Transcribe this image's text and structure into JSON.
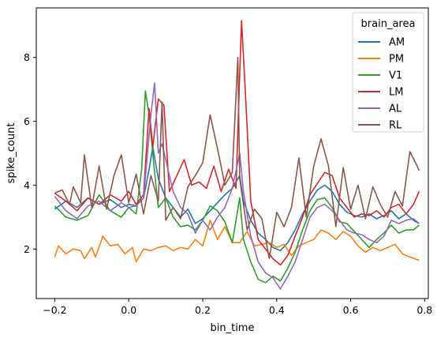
{
  "chart_data": {
    "type": "line",
    "title": "",
    "xlabel": "bin_time",
    "ylabel": "spike_count",
    "xlim": [
      -0.25,
      0.81
    ],
    "ylim": [
      0.45,
      9.55
    ],
    "xticks": [
      -0.2,
      0.0,
      0.2,
      0.4,
      0.6,
      0.8
    ],
    "xtick_labels": [
      "−0.2",
      "0.0",
      "0.2",
      "0.4",
      "0.6",
      "0.8"
    ],
    "yticks": [
      2,
      4,
      6,
      8
    ],
    "ytick_labels": [
      "2",
      "4",
      "6",
      "8"
    ],
    "grid": false,
    "legend": {
      "title": "brain_area",
      "placement": "top-right"
    },
    "series": [
      {
        "name": "AM",
        "color": "#1f77b4",
        "points": [
          [
            -0.2,
            3.25
          ],
          [
            -0.17,
            3.5
          ],
          [
            -0.14,
            3.3
          ],
          [
            -0.11,
            3.6
          ],
          [
            -0.08,
            3.4
          ],
          [
            -0.05,
            3.55
          ],
          [
            -0.02,
            3.3
          ],
          [
            0.0,
            3.4
          ],
          [
            0.02,
            3.35
          ],
          [
            0.04,
            3.6
          ],
          [
            0.055,
            4.5
          ],
          [
            0.065,
            5.2
          ],
          [
            0.08,
            4.2
          ],
          [
            0.1,
            3.6
          ],
          [
            0.12,
            3.3
          ],
          [
            0.14,
            3.0
          ],
          [
            0.16,
            3.25
          ],
          [
            0.18,
            2.8
          ],
          [
            0.2,
            2.95
          ],
          [
            0.22,
            3.2
          ],
          [
            0.24,
            3.45
          ],
          [
            0.26,
            3.7
          ],
          [
            0.28,
            3.9
          ],
          [
            0.3,
            4.3
          ],
          [
            0.31,
            3.5
          ],
          [
            0.33,
            2.9
          ],
          [
            0.35,
            2.5
          ],
          [
            0.37,
            2.3
          ],
          [
            0.39,
            2.05
          ],
          [
            0.41,
            1.95
          ],
          [
            0.43,
            2.2
          ],
          [
            0.45,
            2.6
          ],
          [
            0.47,
            3.1
          ],
          [
            0.49,
            3.5
          ],
          [
            0.51,
            3.85
          ],
          [
            0.53,
            4.0
          ],
          [
            0.55,
            3.8
          ],
          [
            0.57,
            3.4
          ],
          [
            0.59,
            3.15
          ],
          [
            0.61,
            3.05
          ],
          [
            0.63,
            3.0
          ],
          [
            0.65,
            3.1
          ],
          [
            0.67,
            2.95
          ],
          [
            0.69,
            3.05
          ],
          [
            0.71,
            3.2
          ],
          [
            0.73,
            2.95
          ],
          [
            0.75,
            3.1
          ],
          [
            0.77,
            2.9
          ],
          [
            0.785,
            2.8
          ]
        ]
      },
      {
        "name": "PM",
        "color": "#ff7f0e",
        "points": [
          [
            -0.2,
            1.75
          ],
          [
            -0.19,
            2.1
          ],
          [
            -0.17,
            1.85
          ],
          [
            -0.15,
            2.0
          ],
          [
            -0.13,
            1.95
          ],
          [
            -0.12,
            1.7
          ],
          [
            -0.1,
            2.05
          ],
          [
            -0.09,
            1.75
          ],
          [
            -0.07,
            2.4
          ],
          [
            -0.05,
            2.1
          ],
          [
            -0.03,
            2.15
          ],
          [
            -0.01,
            1.85
          ],
          [
            0.01,
            2.05
          ],
          [
            0.02,
            1.6
          ],
          [
            0.04,
            2.0
          ],
          [
            0.06,
            1.95
          ],
          [
            0.08,
            2.05
          ],
          [
            0.1,
            2.1
          ],
          [
            0.12,
            1.95
          ],
          [
            0.14,
            2.05
          ],
          [
            0.16,
            2.0
          ],
          [
            0.18,
            2.3
          ],
          [
            0.2,
            2.1
          ],
          [
            0.22,
            2.9
          ],
          [
            0.24,
            2.3
          ],
          [
            0.26,
            2.7
          ],
          [
            0.28,
            2.2
          ],
          [
            0.3,
            2.2
          ],
          [
            0.32,
            2.55
          ],
          [
            0.34,
            2.1
          ],
          [
            0.36,
            2.15
          ],
          [
            0.38,
            2.2
          ],
          [
            0.4,
            2.05
          ],
          [
            0.42,
            2.15
          ],
          [
            0.44,
            1.8
          ],
          [
            0.46,
            2.1
          ],
          [
            0.48,
            2.2
          ],
          [
            0.5,
            2.3
          ],
          [
            0.52,
            2.6
          ],
          [
            0.54,
            2.5
          ],
          [
            0.56,
            2.3
          ],
          [
            0.58,
            2.55
          ],
          [
            0.6,
            2.4
          ],
          [
            0.62,
            2.1
          ],
          [
            0.64,
            1.9
          ],
          [
            0.66,
            2.05
          ],
          [
            0.68,
            1.95
          ],
          [
            0.7,
            2.05
          ],
          [
            0.72,
            2.15
          ],
          [
            0.74,
            1.85
          ],
          [
            0.76,
            1.75
          ],
          [
            0.785,
            1.65
          ]
        ]
      },
      {
        "name": "V1",
        "color": "#2ca02c",
        "points": [
          [
            -0.2,
            3.35
          ],
          [
            -0.17,
            3.0
          ],
          [
            -0.14,
            2.9
          ],
          [
            -0.11,
            3.05
          ],
          [
            -0.08,
            3.7
          ],
          [
            -0.05,
            3.2
          ],
          [
            -0.02,
            3.0
          ],
          [
            0.0,
            3.3
          ],
          [
            0.02,
            3.1
          ],
          [
            0.035,
            4.5
          ],
          [
            0.045,
            6.95
          ],
          [
            0.055,
            6.2
          ],
          [
            0.07,
            4.4
          ],
          [
            0.08,
            3.3
          ],
          [
            0.1,
            3.6
          ],
          [
            0.12,
            3.0
          ],
          [
            0.14,
            2.7
          ],
          [
            0.16,
            2.75
          ],
          [
            0.18,
            2.6
          ],
          [
            0.2,
            2.9
          ],
          [
            0.22,
            3.35
          ],
          [
            0.24,
            3.2
          ],
          [
            0.26,
            2.85
          ],
          [
            0.28,
            2.2
          ],
          [
            0.3,
            3.6
          ],
          [
            0.31,
            2.3
          ],
          [
            0.33,
            1.6
          ],
          [
            0.35,
            1.05
          ],
          [
            0.37,
            0.95
          ],
          [
            0.39,
            1.15
          ],
          [
            0.41,
            1.0
          ],
          [
            0.43,
            1.4
          ],
          [
            0.45,
            1.9
          ],
          [
            0.47,
            2.6
          ],
          [
            0.49,
            3.2
          ],
          [
            0.51,
            3.55
          ],
          [
            0.53,
            3.6
          ],
          [
            0.55,
            3.3
          ],
          [
            0.57,
            2.85
          ],
          [
            0.59,
            2.8
          ],
          [
            0.61,
            2.55
          ],
          [
            0.63,
            2.3
          ],
          [
            0.65,
            2.05
          ],
          [
            0.67,
            2.3
          ],
          [
            0.69,
            2.5
          ],
          [
            0.71,
            2.75
          ],
          [
            0.73,
            2.5
          ],
          [
            0.75,
            2.6
          ],
          [
            0.77,
            2.6
          ],
          [
            0.785,
            2.75
          ]
        ]
      },
      {
        "name": "LM",
        "color": "#d62728",
        "points": [
          [
            -0.2,
            3.75
          ],
          [
            -0.17,
            3.5
          ],
          [
            -0.14,
            3.2
          ],
          [
            -0.11,
            3.6
          ],
          [
            -0.08,
            3.4
          ],
          [
            -0.05,
            3.7
          ],
          [
            -0.02,
            3.5
          ],
          [
            0.0,
            3.8
          ],
          [
            0.02,
            3.4
          ],
          [
            0.04,
            3.7
          ],
          [
            0.055,
            6.4
          ],
          [
            0.065,
            5.2
          ],
          [
            0.08,
            6.7
          ],
          [
            0.095,
            6.5
          ],
          [
            0.11,
            3.8
          ],
          [
            0.13,
            4.3
          ],
          [
            0.15,
            4.8
          ],
          [
            0.17,
            4.0
          ],
          [
            0.19,
            4.1
          ],
          [
            0.21,
            3.9
          ],
          [
            0.23,
            4.6
          ],
          [
            0.25,
            3.8
          ],
          [
            0.27,
            4.5
          ],
          [
            0.29,
            3.9
          ],
          [
            0.3,
            7.5
          ],
          [
            0.305,
            9.15
          ],
          [
            0.315,
            7.0
          ],
          [
            0.33,
            3.5
          ],
          [
            0.35,
            2.3
          ],
          [
            0.37,
            2.0
          ],
          [
            0.39,
            1.7
          ],
          [
            0.41,
            1.5
          ],
          [
            0.43,
            1.8
          ],
          [
            0.45,
            2.4
          ],
          [
            0.47,
            3.0
          ],
          [
            0.49,
            3.7
          ],
          [
            0.51,
            4.05
          ],
          [
            0.53,
            4.4
          ],
          [
            0.55,
            4.3
          ],
          [
            0.57,
            3.6
          ],
          [
            0.59,
            3.3
          ],
          [
            0.61,
            3.0
          ],
          [
            0.63,
            3.1
          ],
          [
            0.65,
            3.05
          ],
          [
            0.67,
            3.2
          ],
          [
            0.69,
            3.0
          ],
          [
            0.71,
            3.3
          ],
          [
            0.73,
            3.4
          ],
          [
            0.75,
            3.1
          ],
          [
            0.77,
            3.4
          ],
          [
            0.785,
            3.8
          ]
        ]
      },
      {
        "name": "AL",
        "color": "#9467bd",
        "points": [
          [
            -0.2,
            3.65
          ],
          [
            -0.17,
            3.2
          ],
          [
            -0.14,
            2.95
          ],
          [
            -0.11,
            3.35
          ],
          [
            -0.08,
            3.5
          ],
          [
            -0.05,
            3.2
          ],
          [
            -0.02,
            3.45
          ],
          [
            0.0,
            3.3
          ],
          [
            0.02,
            3.35
          ],
          [
            0.04,
            3.6
          ],
          [
            0.06,
            6.2
          ],
          [
            0.07,
            7.2
          ],
          [
            0.08,
            5.0
          ],
          [
            0.09,
            5.3
          ],
          [
            0.1,
            4.8
          ],
          [
            0.12,
            3.8
          ],
          [
            0.14,
            3.3
          ],
          [
            0.16,
            3.1
          ],
          [
            0.18,
            2.5
          ],
          [
            0.2,
            2.9
          ],
          [
            0.22,
            2.6
          ],
          [
            0.24,
            3.0
          ],
          [
            0.26,
            3.3
          ],
          [
            0.28,
            3.9
          ],
          [
            0.3,
            5.0
          ],
          [
            0.31,
            3.8
          ],
          [
            0.33,
            2.4
          ],
          [
            0.35,
            1.6
          ],
          [
            0.37,
            1.25
          ],
          [
            0.39,
            1.1
          ],
          [
            0.41,
            0.75
          ],
          [
            0.43,
            1.15
          ],
          [
            0.45,
            1.6
          ],
          [
            0.47,
            2.3
          ],
          [
            0.49,
            3.0
          ],
          [
            0.51,
            3.3
          ],
          [
            0.53,
            3.4
          ],
          [
            0.55,
            3.2
          ],
          [
            0.57,
            2.9
          ],
          [
            0.59,
            2.6
          ],
          [
            0.61,
            2.5
          ],
          [
            0.63,
            2.45
          ],
          [
            0.65,
            2.3
          ],
          [
            0.67,
            2.2
          ],
          [
            0.69,
            2.4
          ],
          [
            0.71,
            2.9
          ],
          [
            0.73,
            2.8
          ],
          [
            0.75,
            2.9
          ],
          [
            0.77,
            2.95
          ],
          [
            0.785,
            2.8
          ]
        ]
      },
      {
        "name": "RL",
        "color": "#8c564b",
        "points": [
          [
            -0.2,
            3.75
          ],
          [
            -0.18,
            3.85
          ],
          [
            -0.16,
            3.4
          ],
          [
            -0.15,
            3.95
          ],
          [
            -0.13,
            3.45
          ],
          [
            -0.12,
            4.95
          ],
          [
            -0.1,
            3.3
          ],
          [
            -0.08,
            4.6
          ],
          [
            -0.06,
            3.25
          ],
          [
            -0.04,
            4.3
          ],
          [
            -0.02,
            4.95
          ],
          [
            0.0,
            3.45
          ],
          [
            0.02,
            4.35
          ],
          [
            0.04,
            3.1
          ],
          [
            0.06,
            4.3
          ],
          [
            0.08,
            3.5
          ],
          [
            0.09,
            6.6
          ],
          [
            0.1,
            2.9
          ],
          [
            0.12,
            3.3
          ],
          [
            0.14,
            2.95
          ],
          [
            0.16,
            3.95
          ],
          [
            0.18,
            4.3
          ],
          [
            0.2,
            4.7
          ],
          [
            0.22,
            6.2
          ],
          [
            0.24,
            5.15
          ],
          [
            0.26,
            4.0
          ],
          [
            0.28,
            4.4
          ],
          [
            0.295,
            8.0
          ],
          [
            0.3,
            4.2
          ],
          [
            0.32,
            2.6
          ],
          [
            0.34,
            3.25
          ],
          [
            0.36,
            2.95
          ],
          [
            0.38,
            1.7
          ],
          [
            0.4,
            3.15
          ],
          [
            0.42,
            2.7
          ],
          [
            0.44,
            3.3
          ],
          [
            0.46,
            4.85
          ],
          [
            0.48,
            3.0
          ],
          [
            0.5,
            4.6
          ],
          [
            0.52,
            5.45
          ],
          [
            0.54,
            4.6
          ],
          [
            0.56,
            2.7
          ],
          [
            0.58,
            4.55
          ],
          [
            0.6,
            3.25
          ],
          [
            0.62,
            4.0
          ],
          [
            0.64,
            2.95
          ],
          [
            0.66,
            3.95
          ],
          [
            0.68,
            3.4
          ],
          [
            0.7,
            3.0
          ],
          [
            0.72,
            3.8
          ],
          [
            0.74,
            3.35
          ],
          [
            0.76,
            5.05
          ],
          [
            0.78,
            4.6
          ],
          [
            0.785,
            4.45
          ]
        ]
      }
    ]
  }
}
